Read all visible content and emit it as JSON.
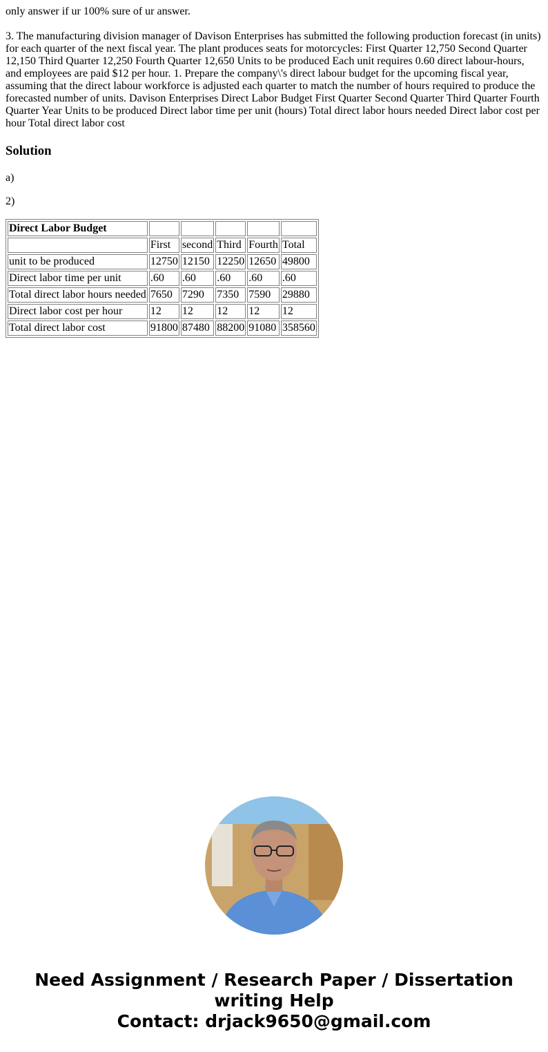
{
  "question": {
    "note": "only answer if ur 100% sure of ur answer.",
    "text": "3. The manufacturing division manager of Davison Enterprises has submitted the following production forecast (in units) for each quarter of the next fiscal year. The plant produces seats for motorcycles: First Quarter 12,750 Second Quarter 12,150 Third Quarter 12,250 Fourth Quarter 12,650 Units to be produced Each unit requires 0.60 direct labour-hours, and employees are paid $12 per hour. 1. Prepare the company\\'s direct labour budget for the upcoming fiscal year, assuming that the direct labour workforce is adjusted each quarter to match the number of hours required to produce the forecasted number of units. Davison Enterprises Direct Labor Budget First Quarter Second Quarter Third Quarter Fourth Quarter Year Units to be produced Direct labor time per unit (hours) Total direct labor hours needed Direct labor cost per hour Total direct labor cost"
  },
  "solution": {
    "heading": "Solution",
    "part_a": "a)",
    "part_2": "2)",
    "table": {
      "title": "Direct Labor Budget",
      "headers": [
        "",
        "First",
        "second",
        "Third",
        "Fourth",
        "Total"
      ],
      "rows": [
        [
          "unit to be produced",
          "12750",
          "12150",
          "12250",
          "12650",
          "49800"
        ],
        [
          "Direct labor time per unit",
          ".60",
          ".60",
          ".60",
          ".60",
          ".60"
        ],
        [
          "Total direct labor hours needed",
          "7650",
          "7290",
          "7350",
          "7590",
          "29880"
        ],
        [
          "Direct labor cost per hour",
          "12",
          "12",
          "12",
          "12",
          "12"
        ],
        [
          "Total direct labor cost",
          "91800",
          "87480",
          "88200",
          "91080",
          "358560"
        ]
      ]
    }
  },
  "footer": {
    "line1": "Need Assignment / Research Paper / Dissertation",
    "line2": "writing Help",
    "line3": "Contact: drjack9650@gmail.com"
  }
}
